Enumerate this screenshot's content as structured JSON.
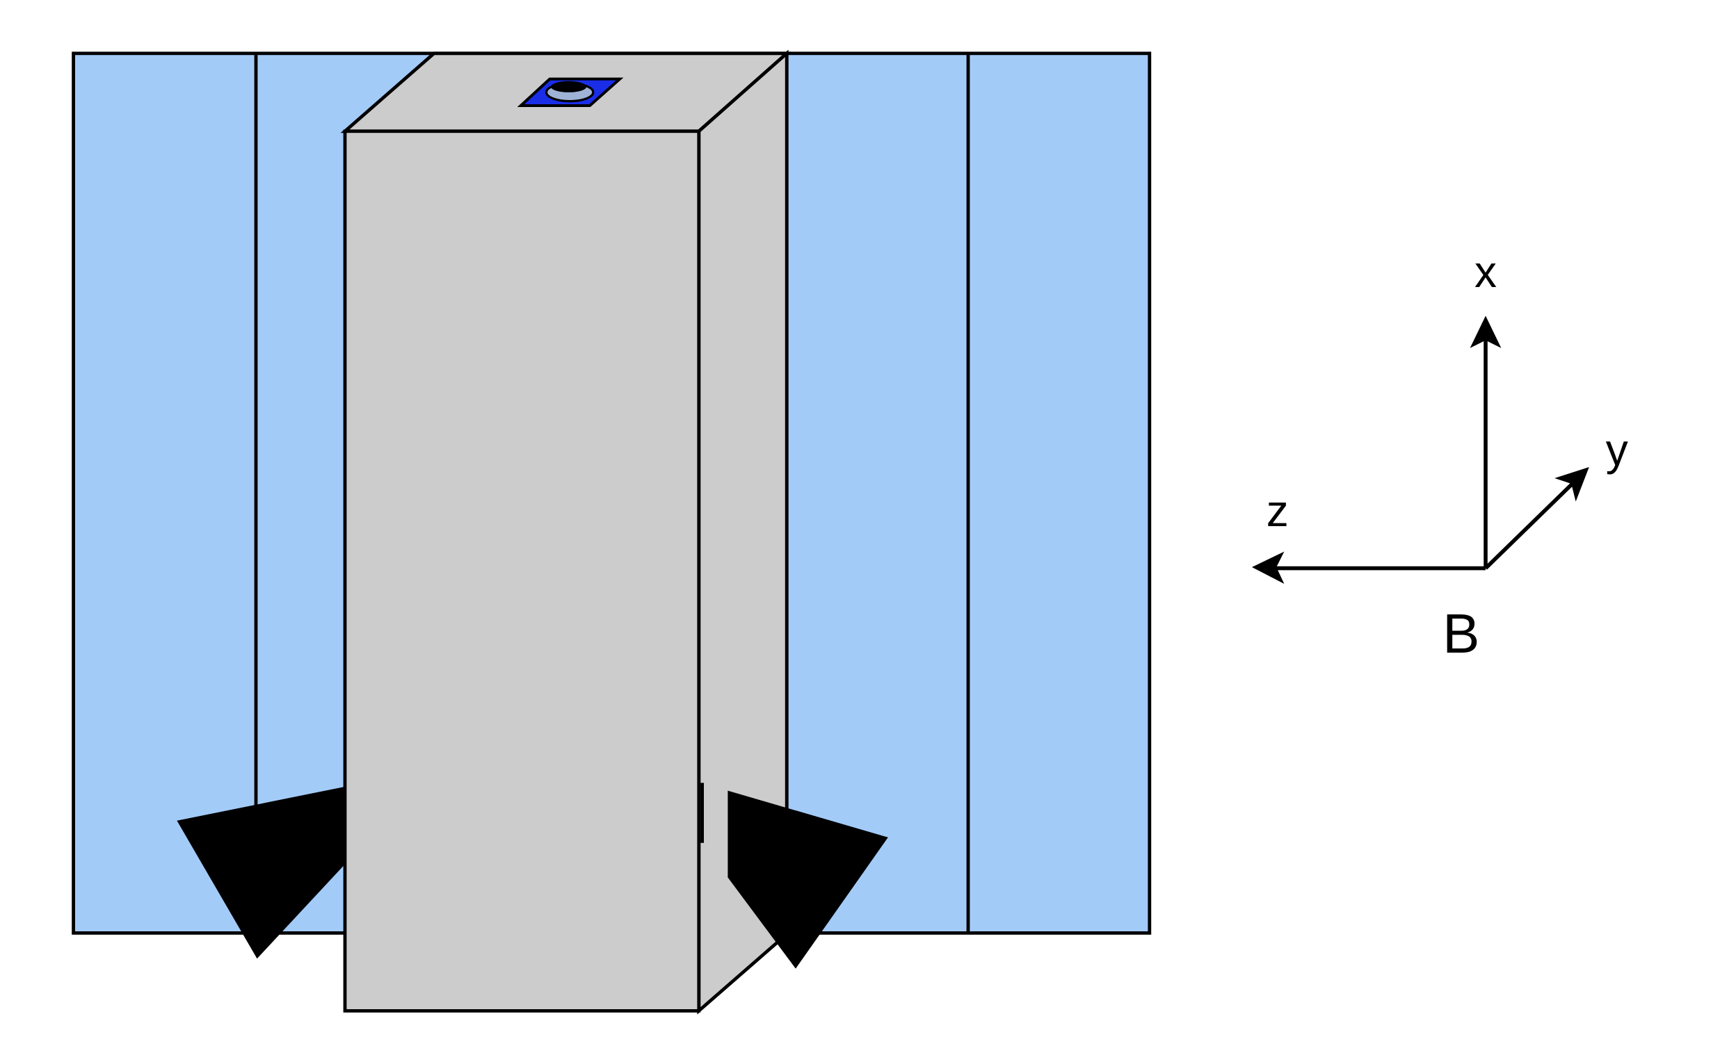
{
  "axes": {
    "x_label": "x",
    "y_label": "y",
    "z_label": "z",
    "origin_label": "B"
  },
  "colors": {
    "panel_fill": "#a3cbf8",
    "box_front": "#cccccc",
    "box_side": "#cccccc",
    "box_top": "#cccccc",
    "stroke": "#000000",
    "aperture_fill": "#1a2ee8",
    "aperture_ring": "#9fb3d6",
    "arrow_fill": "#000000"
  }
}
